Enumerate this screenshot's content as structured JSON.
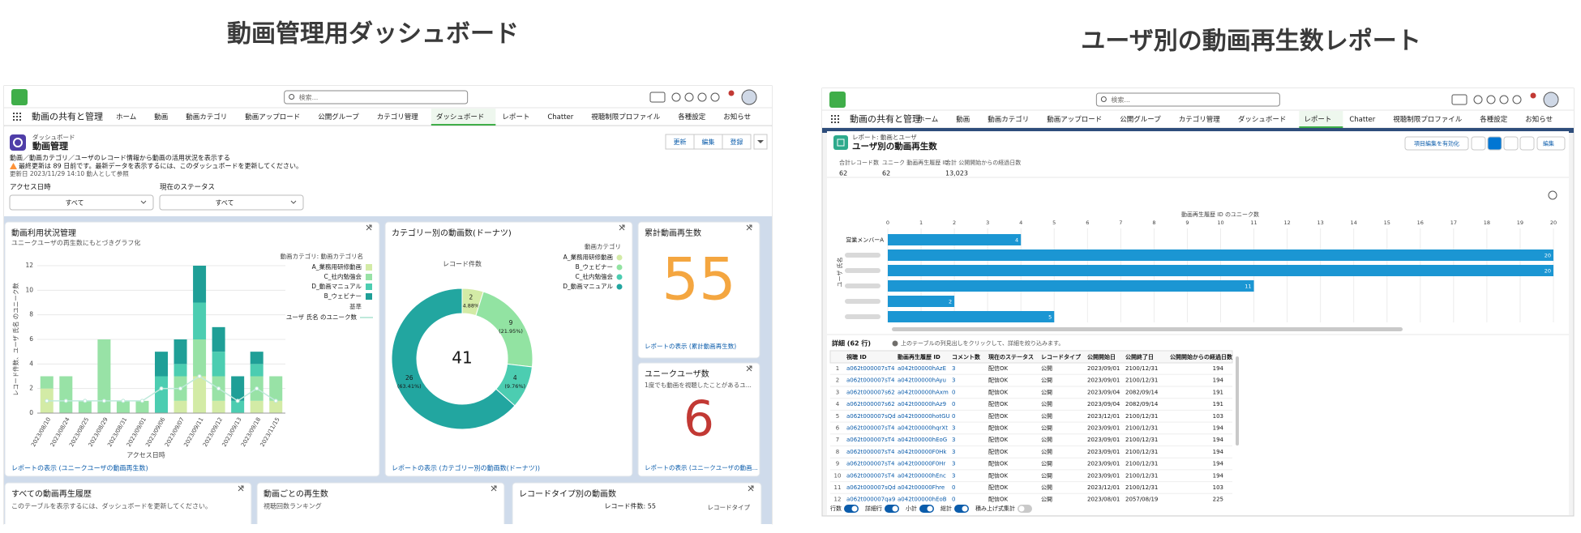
{
  "left": {
    "heading": "動画管理用ダッシュボード",
    "app": {
      "search": "検索...",
      "app_name": "動画の共有と管理",
      "nav": [
        "ホーム",
        "動画",
        "動画カテゴリ",
        "動画アップロード",
        "公開グループ",
        "カテゴリ管理",
        "ダッシュボード",
        "レポート",
        "Chatter",
        "視聴制限プロファイル",
        "各種設定",
        "お知らせ"
      ],
      "active": 6
    },
    "page": {
      "type": "ダッシュボード",
      "name": "動画管理",
      "description": "動画／動画カテゴリ／ユーザのレコード情報から動画の活用状況を表示する",
      "warning": "最終更新は 89 日前です。最新データを表示するには、このダッシュボードを更新してください。",
      "updated": "更新日 2023/11/29 14:10 動人として参照",
      "buttons": [
        "更新",
        "編集",
        "登録"
      ]
    },
    "filters": [
      {
        "label": "アクセス日時",
        "value": "すべて"
      },
      {
        "label": "現在のステータス",
        "value": "すべて"
      }
    ],
    "usage_chart": {
      "type": "bar",
      "title": "動画利用状況管理",
      "subtitle": "ユニークユーザの再生数にもとづきグラフ化",
      "x_label": "アクセス日時",
      "y_label": "レコード件数、ユーザ 氏名 のユニーク数",
      "legend_title": "動画カテゴリ: 動画カテゴリ名",
      "legend_note": "基準",
      "categories": [
        "2023/08/10",
        "2023/08/24",
        "2023/08/25",
        "2023/08/29",
        "2023/08/31",
        "2023/09/01",
        "2023/09/06",
        "2023/09/07",
        "2023/09/11",
        "2023/09/12",
        "2023/09/13",
        "2023/09/18",
        "2023/11/15"
      ],
      "series": [
        {
          "name": "A_業務用研修動画",
          "color": "#d3eba6",
          "values": [
            2,
            0,
            0,
            0,
            0,
            0,
            0,
            1,
            3,
            1,
            0,
            1,
            1
          ]
        },
        {
          "name": "C_社内勉強会",
          "color": "#98e2a6",
          "values": [
            1,
            3,
            1,
            6,
            1,
            1,
            0,
            2,
            3,
            2,
            0,
            2,
            2
          ]
        },
        {
          "name": "D_動画マニュアル",
          "color": "#4ccdb1",
          "values": [
            0,
            0,
            0,
            0,
            0,
            0,
            3,
            1,
            3,
            2,
            1,
            1,
            0
          ]
        },
        {
          "name": "B_ウェビナー",
          "color": "#1f9f97",
          "values": [
            0,
            0,
            0,
            0,
            0,
            0,
            2,
            2,
            3,
            2,
            2,
            1,
            0
          ]
        }
      ],
      "line": {
        "name": "ユーザ 氏名 のユニーク数",
        "color": "#bfe9db",
        "values": [
          1,
          1,
          1,
          1,
          1,
          1,
          2,
          2,
          3,
          2,
          1,
          2,
          1
        ]
      },
      "ylim": [
        0,
        12
      ],
      "yticks": [
        0,
        2,
        4,
        6,
        8,
        10,
        12
      ],
      "footer": "レポートの表示 (ユニークユーザの動画再生数)"
    },
    "donut": {
      "type": "pie",
      "title": "カテゴリー別の動画数(ドーナツ)",
      "total_label": "レコード件数",
      "total": 41,
      "legend_title": "動画カテゴリ",
      "categories": [
        "A_業務用研修動画",
        "B_ウェビナー",
        "C_社内勉強会",
        "D_動画マニュアル"
      ],
      "values": [
        2,
        9,
        4,
        26
      ],
      "percent_labels": [
        "(4.88%)",
        "(21.95%)",
        "(9.76%)",
        "(63.41%)"
      ],
      "colors": [
        "#d3eba6",
        "#92e3a2",
        "#4ccdb1",
        "#22a6a0"
      ],
      "footer": "レポートの表示 (カテゴリー別の動画数(ドーナツ))"
    },
    "total_plays": {
      "title": "累計動画再生数",
      "value": 55,
      "color": "#f4a640",
      "footer": "レポートの表示 (累計動画再生数)"
    },
    "unique_users": {
      "title": "ユニークユーザ数",
      "subtitle": "1度でも動画を視聴したことがあるユ...",
      "value": 6,
      "color": "#c23934",
      "footer": "レポートの表示 (ユニークユーザの動画..."
    },
    "bottom": [
      {
        "title": "すべての動画再生履歴",
        "text": "このテーブルを表示するには、ダッシュボードを更新してください。"
      },
      {
        "title": "動画ごとの再生数",
        "text": "視聴回数ランキング"
      },
      {
        "title": "レコードタイプ別の動画数",
        "text": "レコード件数: 55",
        "legend_title": "レコードタイプ"
      }
    ]
  },
  "right": {
    "heading": "ユーザ別の動画再生数レポート",
    "app": {
      "search": "検索...",
      "app_name": "動画の共有と管理",
      "nav": [
        "ホーム",
        "動画",
        "動画カテゴリ",
        "動画アップロード",
        "公開グループ",
        "カテゴリ管理",
        "ダッシュボード",
        "レポート",
        "Chatter",
        "視聴制限プロファイル",
        "各種設定",
        "お知らせ"
      ],
      "active": 7
    },
    "report": {
      "type": "レポート: 動画とユーザ",
      "name": "ユーザ別の動画再生数",
      "buttons": [
        "項目編集を有効化",
        "編集"
      ]
    },
    "summary": [
      {
        "label": "合計レコード数",
        "value": 62
      },
      {
        "label": "ユニーク 動画再生履歴 ID",
        "value": 62
      },
      {
        "label": "合計 公開開始からの経過日数",
        "value": 13023,
        "value_label": "13,023"
      }
    ],
    "chart": {
      "type": "bar",
      "orientation": "horizontal",
      "x_label": "動画再生履歴 ID のユニーク数",
      "y_label": "ユーザ 氏名",
      "color": "#1b96d3",
      "categories": [
        "営業メンバーA",
        null,
        null,
        null,
        null,
        null
      ],
      "values": [
        4,
        20,
        20,
        11,
        2,
        5
      ],
      "xlim": [
        0,
        20
      ],
      "xticks": [
        0,
        1,
        2,
        3,
        4,
        5,
        6,
        7,
        8,
        9,
        10,
        11,
        12,
        13,
        14,
        15,
        16,
        17,
        18,
        19,
        20
      ]
    },
    "table": {
      "title": "詳細 (62 行)",
      "note": "上のテーブルの列見出しをクリックして、詳細を絞り込みます。",
      "columns": [
        "視聴 ID",
        "動画再生履歴 ID",
        "コメント数",
        "現在のステータス",
        "レコードタイプ",
        "公開開始日",
        "公開終了日",
        "公開開始からの経過日数"
      ],
      "rows": [
        [
          1,
          "a062t000007sT4",
          "a042t00000hAzE",
          3,
          "配信OK",
          "公開",
          "2023/09/01",
          "2100/12/31",
          194
        ],
        [
          2,
          "a062t000007sT4",
          "a042t00000hAyu",
          3,
          "配信OK",
          "公開",
          "2023/09/01",
          "2100/12/31",
          194
        ],
        [
          3,
          "a062t000007s62",
          "a042t00000hAxm",
          0,
          "配信OK",
          "公開",
          "2023/09/04",
          "2082/09/14",
          191
        ],
        [
          4,
          "a062t000007s62",
          "a042t00000hAz9",
          0,
          "配信OK",
          "公開",
          "2023/09/04",
          "2082/09/14",
          191
        ],
        [
          5,
          "a062t000007sQd",
          "a042t00000hotGU",
          0,
          "配信OK",
          "公開",
          "2023/12/01",
          "2100/12/31",
          103
        ],
        [
          6,
          "a062t000007sT4",
          "a042t00000hqrXt",
          3,
          "配信OK",
          "公開",
          "2023/09/01",
          "2100/12/31",
          194
        ],
        [
          7,
          "a062t000007sT4",
          "a042t00000hEoG",
          3,
          "配信OK",
          "公開",
          "2023/09/01",
          "2100/12/31",
          194
        ],
        [
          8,
          "a062t000007sT4",
          "a042t00000F0Hk",
          3,
          "配信OK",
          "公開",
          "2023/09/01",
          "2100/12/31",
          194
        ],
        [
          9,
          "a062t000007sT4",
          "a042t00000F0Hr",
          3,
          "配信OK",
          "公開",
          "2023/09/01",
          "2100/12/31",
          194
        ],
        [
          10,
          "a062t000007sT4",
          "a042t00000hEnc",
          3,
          "配信OK",
          "公開",
          "2023/09/01",
          "2100/12/31",
          194
        ],
        [
          11,
          "a062t000007sQd",
          "a042t00000Fhre",
          0,
          "配信OK",
          "公開",
          "2023/12/01",
          "2100/12/31",
          103
        ],
        [
          12,
          "a062t000007qa9",
          "a042t00000hEoB",
          0,
          "配信OK",
          "公開",
          "2023/08/01",
          "2057/08/19",
          225
        ]
      ]
    },
    "toggles": [
      {
        "label": "行数",
        "on": true
      },
      {
        "label": "詳細行",
        "on": true
      },
      {
        "label": "小計",
        "on": true
      },
      {
        "label": "総計",
        "on": true
      },
      {
        "label": "積み上げ式集計",
        "on": false
      }
    ]
  }
}
